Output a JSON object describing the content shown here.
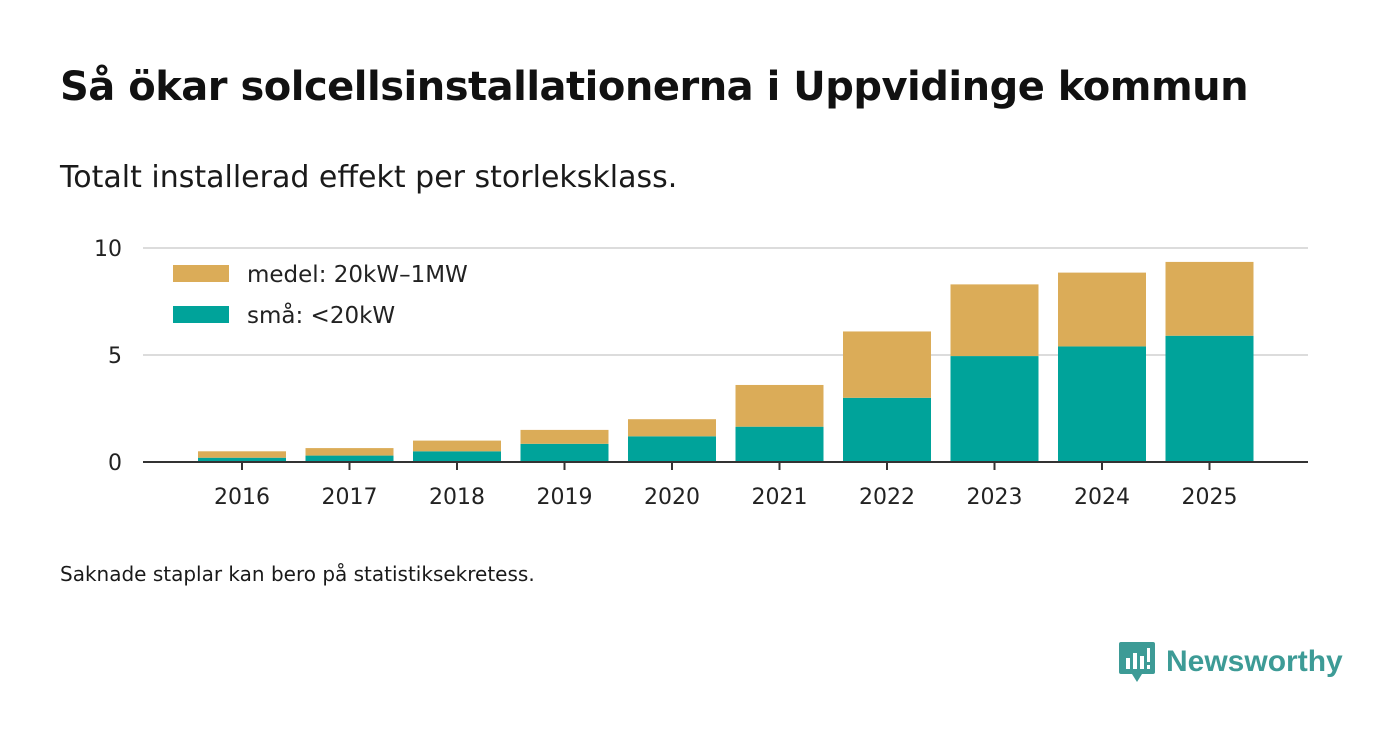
{
  "header": {
    "title": "Så ökar solcellsinstallationerna i Uppvidinge kommun",
    "subtitle": "Totalt installerad effekt per storleksklass."
  },
  "footnote": "Saknade staplar kan bero på statistiksekretess.",
  "brand": {
    "name": "Newsworthy",
    "icon": "newsworthy-logo-icon",
    "color": "#3d9b96"
  },
  "chart_data": {
    "type": "bar",
    "stacked": true,
    "categories": [
      "2016",
      "2017",
      "2018",
      "2019",
      "2020",
      "2021",
      "2022",
      "2023",
      "2024",
      "2025"
    ],
    "series": [
      {
        "name": "små: <20kW",
        "color": "#00a39a",
        "values": [
          0.2,
          0.3,
          0.5,
          0.85,
          1.2,
          1.65,
          3.0,
          4.95,
          5.4,
          5.9
        ]
      },
      {
        "name": "medel: 20kW–1MW",
        "color": "#dbac58",
        "values": [
          0.3,
          0.35,
          0.5,
          0.65,
          0.8,
          1.95,
          3.1,
          3.35,
          3.45,
          3.45
        ]
      }
    ],
    "legend_order": [
      "medel: 20kW–1MW",
      "små: <20kW"
    ],
    "legend_position": "top-left",
    "yticks": [
      0,
      5,
      10
    ],
    "ylim": [
      0,
      10
    ],
    "grid": true,
    "xlabel": "",
    "ylabel": ""
  }
}
